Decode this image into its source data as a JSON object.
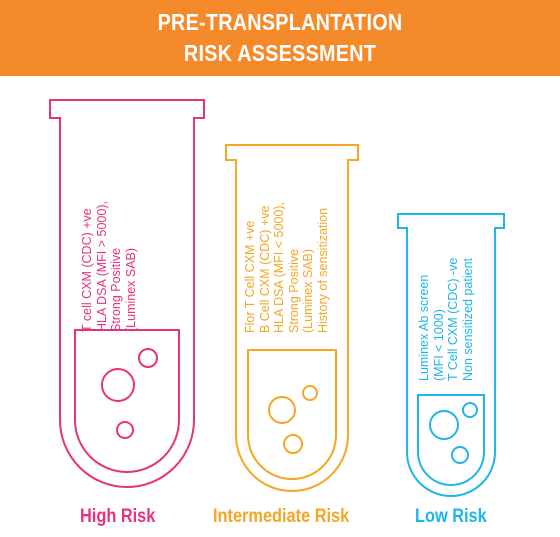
{
  "header": {
    "line1": "PRE-TRANSPLANTATION",
    "line2": "RISK ASSESSMENT",
    "background": "#f58a2a"
  },
  "tubes": [
    {
      "id": "high",
      "label": "High Risk",
      "color": "#e8327c",
      "lines": [
        "T cell CXM (CDC) +ve",
        "HLA DSA (MFI > 5000),",
        "Strong Positive",
        "(Luminex SAB)"
      ]
    },
    {
      "id": "intermediate",
      "label": "Intermediate Risk",
      "color": "#f5a623",
      "lines": [
        "Flor T Cell CXM +ve",
        "B Cell CXM (CDC) +ve",
        "HLA DSA (MFI < 5000),",
        "Strong Positive",
        "(Luminex SAB)",
        "History of sensitization"
      ]
    },
    {
      "id": "low",
      "label": "Low Risk",
      "color": "#1fb5e8",
      "lines": [
        "Luminex Ab screen",
        "(MFI < 1000)",
        "T Cell CXM (CDC) -ve",
        "Non sensitized patient"
      ]
    }
  ]
}
